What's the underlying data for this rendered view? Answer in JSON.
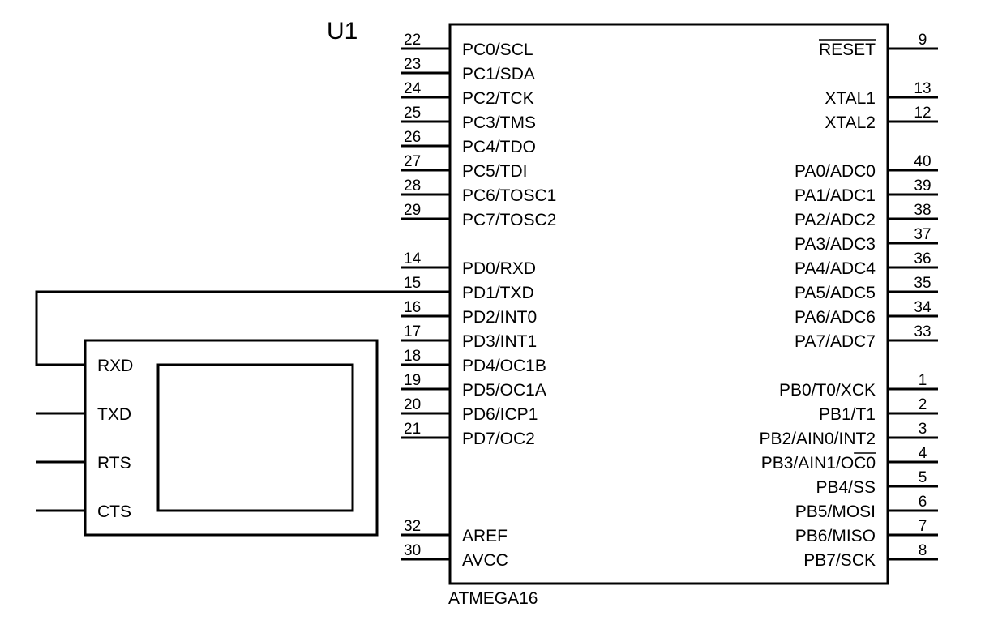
{
  "chip": {
    "ref": "U1",
    "part": "ATMEGA16",
    "left_pins": [
      {
        "num": "22",
        "label": "PC0/SCL"
      },
      {
        "num": "23",
        "label": "PC1/SDA"
      },
      {
        "num": "24",
        "label": "PC2/TCK"
      },
      {
        "num": "25",
        "label": "PC3/TMS"
      },
      {
        "num": "26",
        "label": "PC4/TDO"
      },
      {
        "num": "27",
        "label": "PC5/TDI"
      },
      {
        "num": "28",
        "label": "PC6/TOSC1"
      },
      {
        "num": "29",
        "label": "PC7/TOSC2"
      },
      {
        "num": "14",
        "label": "PD0/RXD"
      },
      {
        "num": "15",
        "label": "PD1/TXD"
      },
      {
        "num": "16",
        "label": "PD2/INT0"
      },
      {
        "num": "17",
        "label": "PD3/INT1"
      },
      {
        "num": "18",
        "label": "PD4/OC1B"
      },
      {
        "num": "19",
        "label": "PD5/OC1A"
      },
      {
        "num": "20",
        "label": "PD6/ICP1"
      },
      {
        "num": "21",
        "label": "PD7/OC2"
      },
      {
        "num": "32",
        "label": "AREF"
      },
      {
        "num": "30",
        "label": "AVCC"
      }
    ],
    "right_pins": [
      {
        "num": "9",
        "label": "RESET"
      },
      {
        "num": "13",
        "label": "XTAL1"
      },
      {
        "num": "12",
        "label": "XTAL2"
      },
      {
        "num": "40",
        "label": "PA0/ADC0"
      },
      {
        "num": "39",
        "label": "PA1/ADC1"
      },
      {
        "num": "38",
        "label": "PA2/ADC2"
      },
      {
        "num": "37",
        "label": "PA3/ADC3"
      },
      {
        "num": "36",
        "label": "PA4/ADC4"
      },
      {
        "num": "35",
        "label": "PA5/ADC5"
      },
      {
        "num": "34",
        "label": "PA6/ADC6"
      },
      {
        "num": "33",
        "label": "PA7/ADC7"
      },
      {
        "num": "1",
        "label": "PB0/T0/XCK"
      },
      {
        "num": "2",
        "label": "PB1/T1"
      },
      {
        "num": "3",
        "label": "PB2/AIN0/INT2"
      },
      {
        "num": "4",
        "label": "PB3/AIN1/OC0"
      },
      {
        "num": "5",
        "label": "PB4/SS"
      },
      {
        "num": "6",
        "label": "PB5/MOSI"
      },
      {
        "num": "7",
        "label": "PB6/MISO"
      },
      {
        "num": "8",
        "label": "PB7/SCK"
      }
    ]
  },
  "terminal": {
    "pins": [
      "RXD",
      "TXD",
      "RTS",
      "CTS"
    ]
  }
}
